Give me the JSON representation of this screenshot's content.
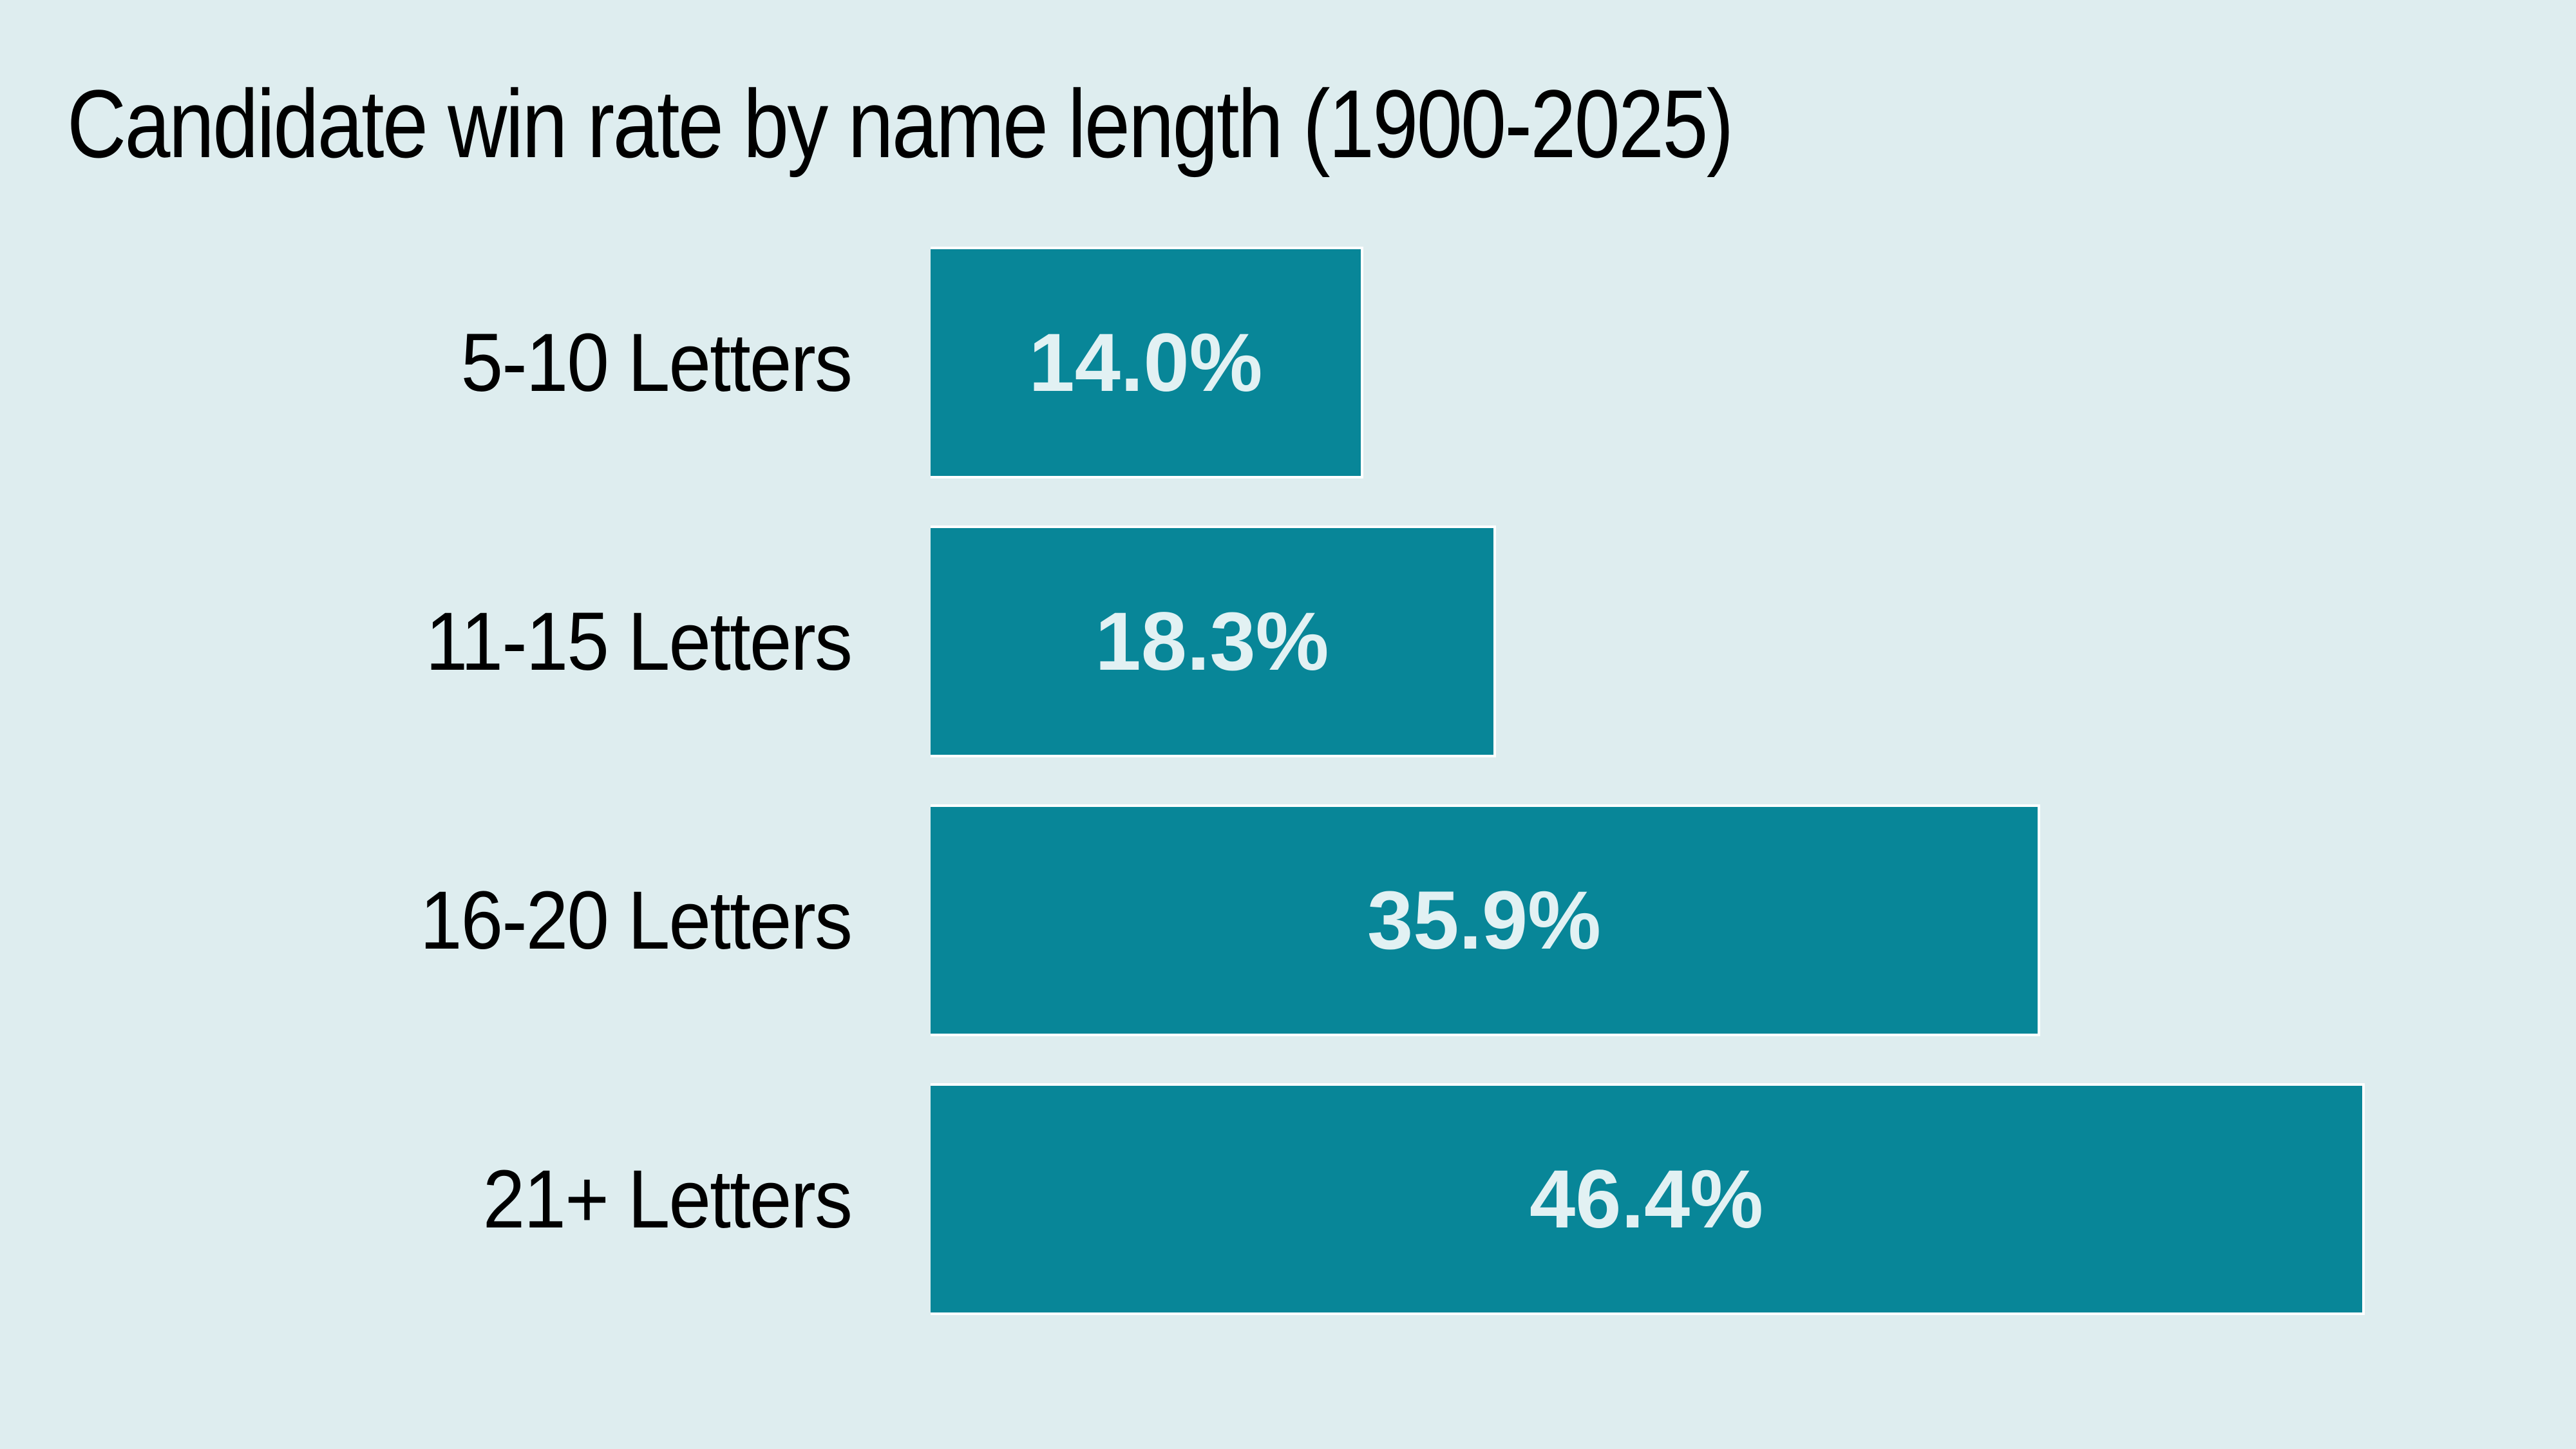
{
  "title": "Candidate win rate by name length (1900-2025)",
  "chart_data": {
    "type": "bar",
    "orientation": "horizontal",
    "title": "Candidate win rate by name length (1900-2025)",
    "categories": [
      "5-10 Letters",
      "11-15 Letters",
      "16-20 Letters",
      "21+ Letters"
    ],
    "values": [
      14.0,
      18.3,
      35.9,
      46.4
    ],
    "value_labels": [
      "14.0%",
      "18.3%",
      "35.9%",
      "46.4%"
    ],
    "unit": "%",
    "xlim": [
      0,
      50
    ],
    "grid": false,
    "legend": false,
    "axis_ticks": false,
    "colors": {
      "background": "#deedef",
      "bar": "#088698",
      "bar_stroke": "#ffffff",
      "label_text": "#000000",
      "value_text": "#e2f1f3"
    }
  }
}
